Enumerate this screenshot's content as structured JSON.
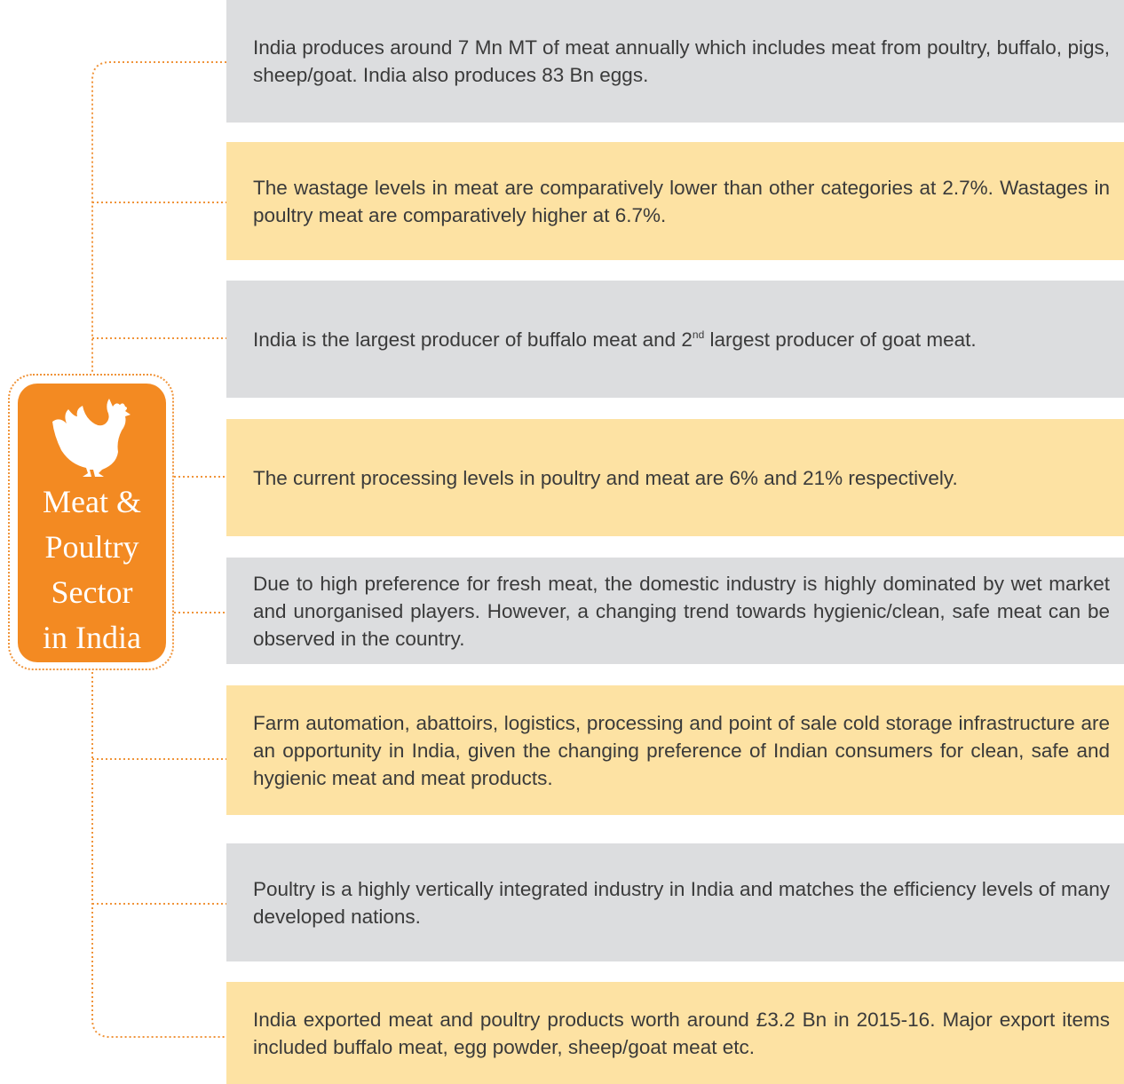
{
  "hub": {
    "title_lines": [
      "Meat &",
      "Poultry",
      "Sector",
      "in India"
    ]
  },
  "items": [
    {
      "text": "India produces around 7 Mn MT of meat annually which includes meat from poultry, buffalo, pigs, sheep/goat. India also produces 83 Bn eggs."
    },
    {
      "text": "The wastage levels in meat are comparatively lower than other categories at 2.7%. Wastages in poultry meat are comparatively higher at 6.7%."
    },
    {
      "text_before": "India is the largest producer of buffalo meat and 2",
      "superscript": "nd",
      "text_after": " largest producer of goat meat."
    },
    {
      "text": "The current processing levels in poultry and meat are 6% and 21% respectively."
    },
    {
      "text": "Due to high preference for fresh meat, the domestic industry is highly dominated by wet market and unorganised players. However, a changing trend towards hygienic/clean, safe meat can be observed in the country."
    },
    {
      "text": "Farm automation, abattoirs, logistics, processing and point of sale cold storage infrastructure are an opportunity in India, given the changing preference of Indian consumers for clean, safe and hygienic meat and meat products."
    },
    {
      "text": "Poultry is a highly vertically integrated industry in India and matches the efficiency levels of many developed nations."
    },
    {
      "text": "India exported meat and poultry products worth around £3.2 Bn in 2015-16. Major export items included buffalo meat, egg powder, sheep/goat meat etc."
    }
  ]
}
